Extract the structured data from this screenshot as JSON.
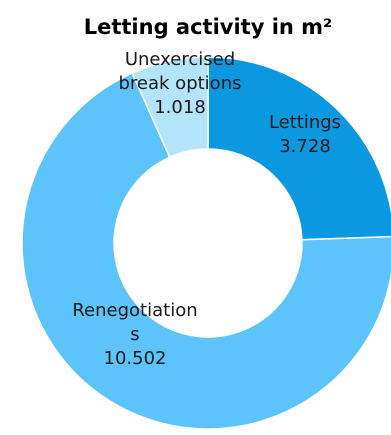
{
  "chart_data": {
    "type": "pie",
    "subtype": "donut",
    "title": "Letting activity in m²",
    "legend": "none",
    "slices": [
      {
        "name": "Lettings",
        "value": 3728,
        "label_lines": [
          "Lettings",
          "3.728"
        ],
        "color": "#0a98e0"
      },
      {
        "name": "Renegotiations",
        "value": 10502,
        "label_lines": [
          "Renegotiation",
          "s",
          "10.502"
        ],
        "color": "#5cc3fb"
      },
      {
        "name": "Unexercised break options",
        "value": 1018,
        "label_lines": [
          "Unexercised",
          "break options",
          "1.018"
        ],
        "color": "#b4e3fc"
      }
    ]
  }
}
